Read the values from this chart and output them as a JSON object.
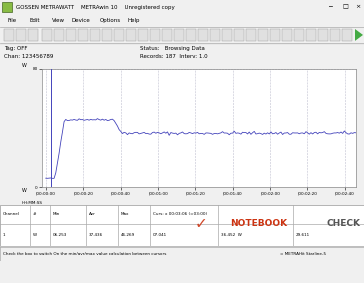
{
  "title": "GOSSEN METRAWATT    METRAwin 10    Unregistered copy",
  "menu_items": [
    "File",
    "Edit",
    "View",
    "Device",
    "Options",
    "Help"
  ],
  "tag_off": "Tag: OFF",
  "chan": "Chan: 123456789",
  "status": "Status:   Browsing Data",
  "records": "Records: 187  Interv: 1.0",
  "y_max_label": "80",
  "y_min_label": "0",
  "y_unit": "W",
  "x_tick_labels": [
    "|00:00:00",
    "|00:00:20",
    "|00:00:40",
    "|00:01:00",
    "|00:01:20",
    "|00:01:40",
    "|00:02:00",
    "|00:02:20",
    "|00:02:40"
  ],
  "x_axis_header": "HH:MM:SS",
  "channel_row": [
    "1",
    "W",
    "06.253",
    "37.436",
    "46.269",
    "07.041",
    "36.452  W",
    "29.611"
  ],
  "cursor_header": "Curs: x 00:03:06 (=03:00)",
  "col_headers": [
    "Channel",
    "#",
    "Min",
    "Avr",
    "Max",
    "",
    ""
  ],
  "bottom_status": "Check the box to switch On the min/avr/max value calculation between cursors",
  "bottom_right": "= METRAHit Starline-5",
  "win_bg": "#f0f0f0",
  "title_bg": "#f0f0f0",
  "plot_bg": "#ffffff",
  "grid_color": "#c0c0d0",
  "line_color": "#4444bb",
  "cursor_color": "#4444bb",
  "border_color": "#808080",
  "y_range": [
    0,
    80
  ],
  "total_points": 187,
  "baseline_power": 6.0,
  "peak_power": 46.0,
  "steady_power": 36.5
}
